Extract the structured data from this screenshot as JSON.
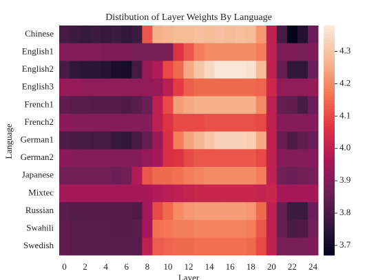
{
  "chart_data": {
    "type": "heatmap",
    "title": "Distibution of Layer Weights By Language",
    "xlabel": "Layer",
    "ylabel": "Language",
    "categories": [
      "0",
      null,
      "2",
      null,
      "4",
      null,
      "6",
      null,
      "8",
      null,
      "10",
      null,
      "12",
      null,
      "14",
      null,
      "16",
      null,
      "18",
      null,
      "20",
      null,
      "22",
      null,
      "24"
    ],
    "rows": [
      "Chinese",
      "English1",
      "English2",
      "English3",
      "French1",
      "French2",
      "German1",
      "German2",
      "Japanese",
      "Mixtec",
      "Russian",
      "Swahili",
      "Swedish"
    ],
    "values": [
      [
        3.79,
        3.78,
        3.77,
        3.78,
        3.77,
        3.78,
        3.76,
        3.78,
        4.12,
        4.26,
        4.27,
        4.28,
        4.28,
        4.29,
        4.28,
        4.29,
        4.28,
        4.29,
        4.28,
        4.22,
        4.0,
        3.8,
        3.67,
        3.73,
        3.86
      ],
      [
        3.9,
        3.9,
        3.9,
        3.9,
        3.89,
        3.89,
        3.89,
        3.88,
        3.88,
        3.88,
        3.88,
        4.06,
        4.12,
        4.18,
        4.2,
        4.2,
        4.2,
        4.2,
        4.2,
        4.18,
        4.0,
        3.89,
        3.89,
        3.88,
        3.89
      ],
      [
        3.8,
        3.76,
        3.75,
        3.75,
        3.74,
        3.72,
        3.71,
        3.79,
        3.93,
        3.98,
        4.1,
        4.15,
        4.25,
        4.3,
        4.34,
        4.37,
        4.37,
        4.37,
        4.36,
        4.28,
        4.0,
        3.85,
        3.76,
        3.76,
        3.86
      ],
      [
        3.93,
        3.93,
        3.92,
        3.92,
        3.92,
        3.92,
        3.92,
        3.92,
        3.92,
        3.93,
        3.99,
        4.08,
        4.13,
        4.15,
        4.15,
        4.15,
        4.15,
        4.15,
        4.15,
        4.14,
        4.03,
        3.92,
        3.92,
        3.92,
        3.93
      ],
      [
        3.84,
        3.83,
        3.83,
        3.82,
        3.82,
        3.82,
        3.81,
        3.83,
        3.86,
        4.0,
        4.1,
        4.23,
        4.25,
        4.26,
        4.26,
        4.26,
        4.26,
        4.26,
        4.26,
        4.2,
        4.0,
        3.85,
        3.84,
        3.8,
        3.86
      ],
      [
        3.91,
        3.9,
        3.9,
        3.9,
        3.9,
        3.9,
        3.9,
        3.9,
        3.9,
        4.0,
        4.06,
        4.1,
        4.1,
        4.1,
        4.11,
        4.11,
        4.11,
        4.11,
        4.11,
        4.1,
        4.0,
        3.9,
        3.9,
        3.9,
        3.9
      ],
      [
        3.81,
        3.8,
        3.8,
        3.79,
        3.79,
        3.77,
        3.76,
        3.8,
        3.85,
        3.94,
        4.05,
        4.18,
        4.24,
        4.27,
        4.3,
        4.33,
        4.33,
        4.33,
        4.32,
        4.25,
        4.0,
        3.85,
        3.81,
        3.84,
        3.86
      ],
      [
        3.91,
        3.9,
        3.9,
        3.9,
        3.9,
        3.9,
        3.9,
        3.9,
        3.93,
        3.96,
        4.05,
        4.06,
        4.1,
        4.12,
        4.12,
        4.12,
        4.12,
        4.12,
        4.12,
        4.1,
        4.0,
        3.9,
        3.9,
        3.9,
        3.9
      ],
      [
        3.87,
        3.87,
        3.87,
        3.87,
        3.87,
        3.86,
        3.87,
        3.98,
        4.12,
        4.15,
        4.15,
        4.16,
        4.18,
        4.19,
        4.2,
        4.2,
        4.2,
        4.2,
        4.2,
        4.18,
        4.0,
        3.87,
        3.86,
        3.87,
        3.88
      ],
      [
        3.95,
        3.95,
        3.95,
        3.95,
        3.95,
        3.95,
        3.95,
        3.95,
        3.96,
        3.98,
        3.99,
        4.0,
        4.01,
        4.02,
        4.02,
        4.02,
        4.02,
        4.02,
        4.02,
        4.01,
        4.02,
        3.95,
        3.95,
        3.95,
        3.95
      ],
      [
        3.83,
        3.82,
        3.82,
        3.82,
        3.82,
        3.82,
        3.82,
        3.81,
        3.95,
        4.1,
        4.15,
        4.2,
        4.22,
        4.23,
        4.23,
        4.23,
        4.23,
        4.23,
        4.22,
        4.15,
        4.0,
        3.85,
        3.78,
        3.78,
        3.86
      ],
      [
        3.84,
        3.83,
        3.83,
        3.83,
        3.83,
        3.82,
        3.82,
        3.83,
        3.95,
        4.16,
        4.17,
        4.18,
        4.18,
        4.19,
        4.19,
        4.19,
        4.19,
        4.19,
        4.18,
        4.12,
        4.0,
        3.85,
        3.8,
        3.81,
        3.87
      ],
      [
        3.84,
        3.83,
        3.83,
        3.83,
        3.83,
        3.83,
        3.83,
        3.83,
        4.0,
        4.13,
        4.14,
        4.15,
        4.15,
        4.16,
        4.16,
        4.16,
        4.16,
        4.16,
        4.15,
        4.1,
        4.0,
        3.88,
        3.88,
        3.88,
        3.89
      ]
    ],
    "clim": [
      3.67,
      4.38
    ],
    "cticks": [
      3.7,
      3.8,
      3.9,
      {
        "value": 4,
        "label": "4.0"
      },
      4.1,
      4.2,
      4.3
    ],
    "colormap": [
      [
        0,
        "#03051a"
      ],
      [
        0.14,
        "#36193e"
      ],
      [
        0.28,
        "#701f57"
      ],
      [
        0.42,
        "#ad1759"
      ],
      [
        0.56,
        "#e13342"
      ],
      [
        0.7,
        "#f37651"
      ],
      [
        0.84,
        "#f6b48e"
      ],
      [
        1,
        "#faebdd"
      ]
    ]
  }
}
